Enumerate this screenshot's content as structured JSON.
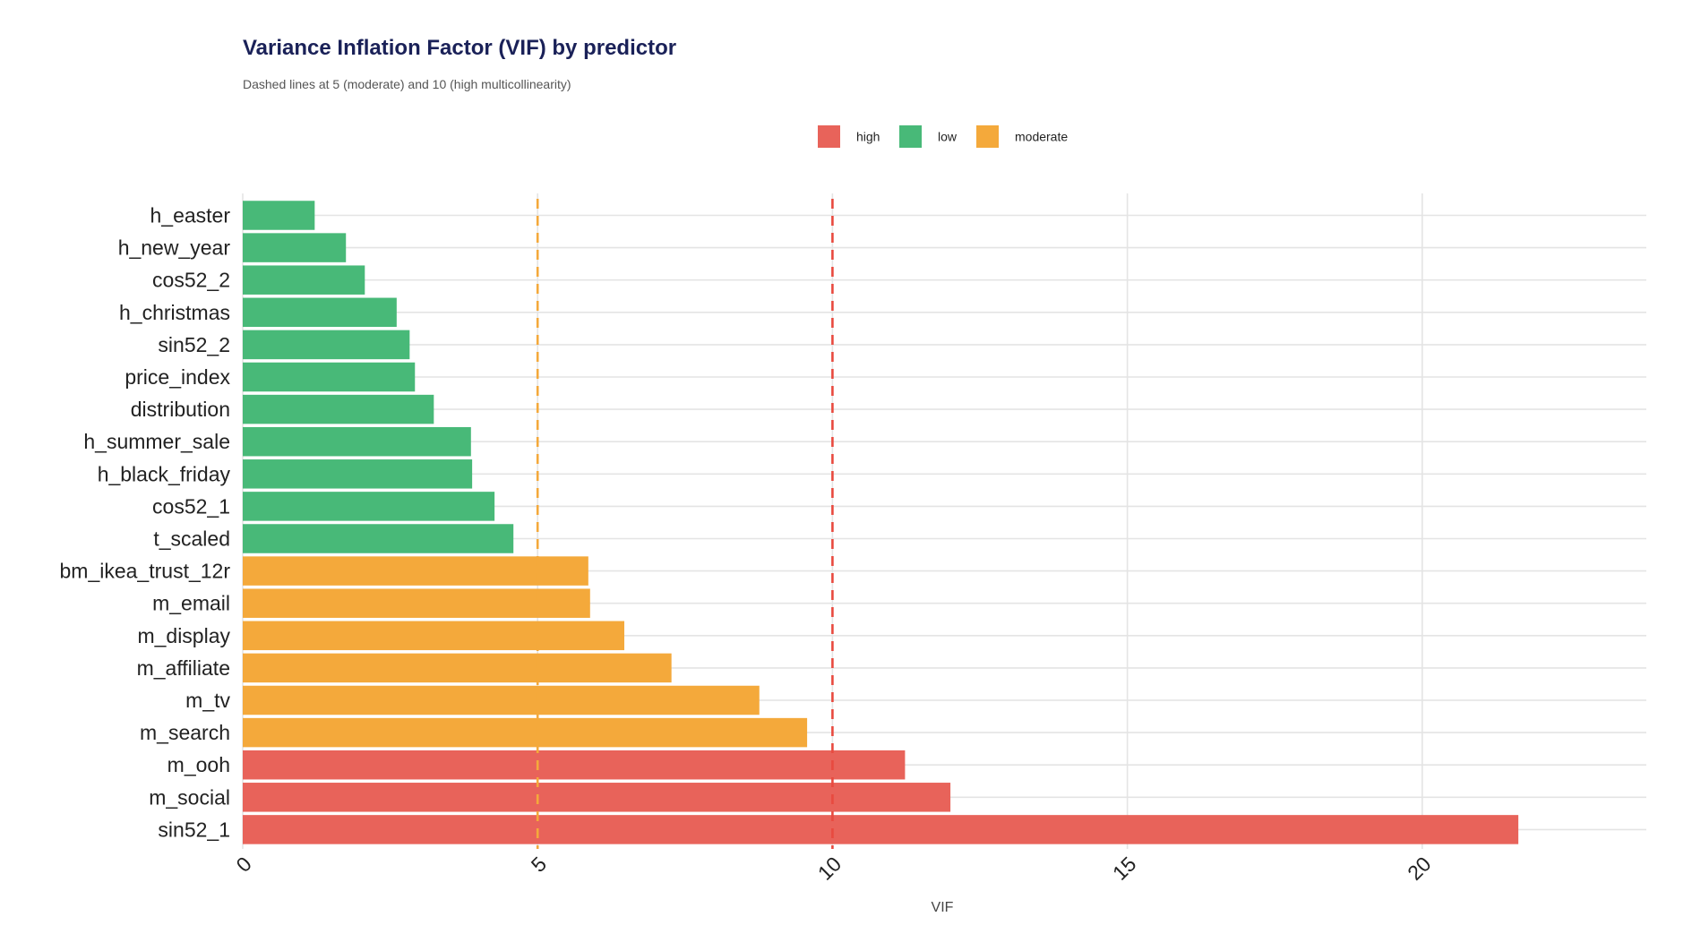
{
  "chart_data": {
    "type": "bar",
    "orientation": "horizontal",
    "title": "Variance Inflation Factor (VIF) by predictor",
    "subtitle": "Dashed lines at 5 (moderate) and 10 (high multicollinearity)",
    "xlabel": "VIF",
    "ylabel": "",
    "xlim": [
      0,
      23.8
    ],
    "xticks": [
      0,
      5,
      10,
      15,
      20
    ],
    "grid": true,
    "legend_position": "top",
    "legend": [
      {
        "label": "high",
        "color": "#e8635a"
      },
      {
        "label": "low",
        "color": "#48b978"
      },
      {
        "label": "moderate",
        "color": "#f4a93b"
      }
    ],
    "reference_lines": [
      {
        "value": 5,
        "color": "#f4a93b",
        "style": "dashed"
      },
      {
        "value": 10,
        "color": "#e84a3f",
        "style": "dashed"
      }
    ],
    "bars": [
      {
        "label": "h_easter",
        "value": 1.22,
        "group": "low"
      },
      {
        "label": "h_new_year",
        "value": 1.75,
        "group": "low"
      },
      {
        "label": "cos52_2",
        "value": 2.07,
        "group": "low"
      },
      {
        "label": "h_christmas",
        "value": 2.61,
        "group": "low"
      },
      {
        "label": "sin52_2",
        "value": 2.83,
        "group": "low"
      },
      {
        "label": "price_index",
        "value": 2.92,
        "group": "low"
      },
      {
        "label": "distribution",
        "value": 3.24,
        "group": "low"
      },
      {
        "label": "h_summer_sale",
        "value": 3.87,
        "group": "low"
      },
      {
        "label": "h_black_friday",
        "value": 3.89,
        "group": "low"
      },
      {
        "label": "cos52_1",
        "value": 4.27,
        "group": "low"
      },
      {
        "label": "t_scaled",
        "value": 4.59,
        "group": "low"
      },
      {
        "label": "bm_ikea_trust_12r",
        "value": 5.86,
        "group": "moderate"
      },
      {
        "label": "m_email",
        "value": 5.89,
        "group": "moderate"
      },
      {
        "label": "m_display",
        "value": 6.47,
        "group": "moderate"
      },
      {
        "label": "m_affiliate",
        "value": 7.27,
        "group": "moderate"
      },
      {
        "label": "m_tv",
        "value": 8.76,
        "group": "moderate"
      },
      {
        "label": "m_search",
        "value": 9.57,
        "group": "moderate"
      },
      {
        "label": "m_ooh",
        "value": 11.23,
        "group": "high"
      },
      {
        "label": "m_social",
        "value": 12.0,
        "group": "high"
      },
      {
        "label": "sin52_1",
        "value": 21.63,
        "group": "high"
      }
    ]
  }
}
